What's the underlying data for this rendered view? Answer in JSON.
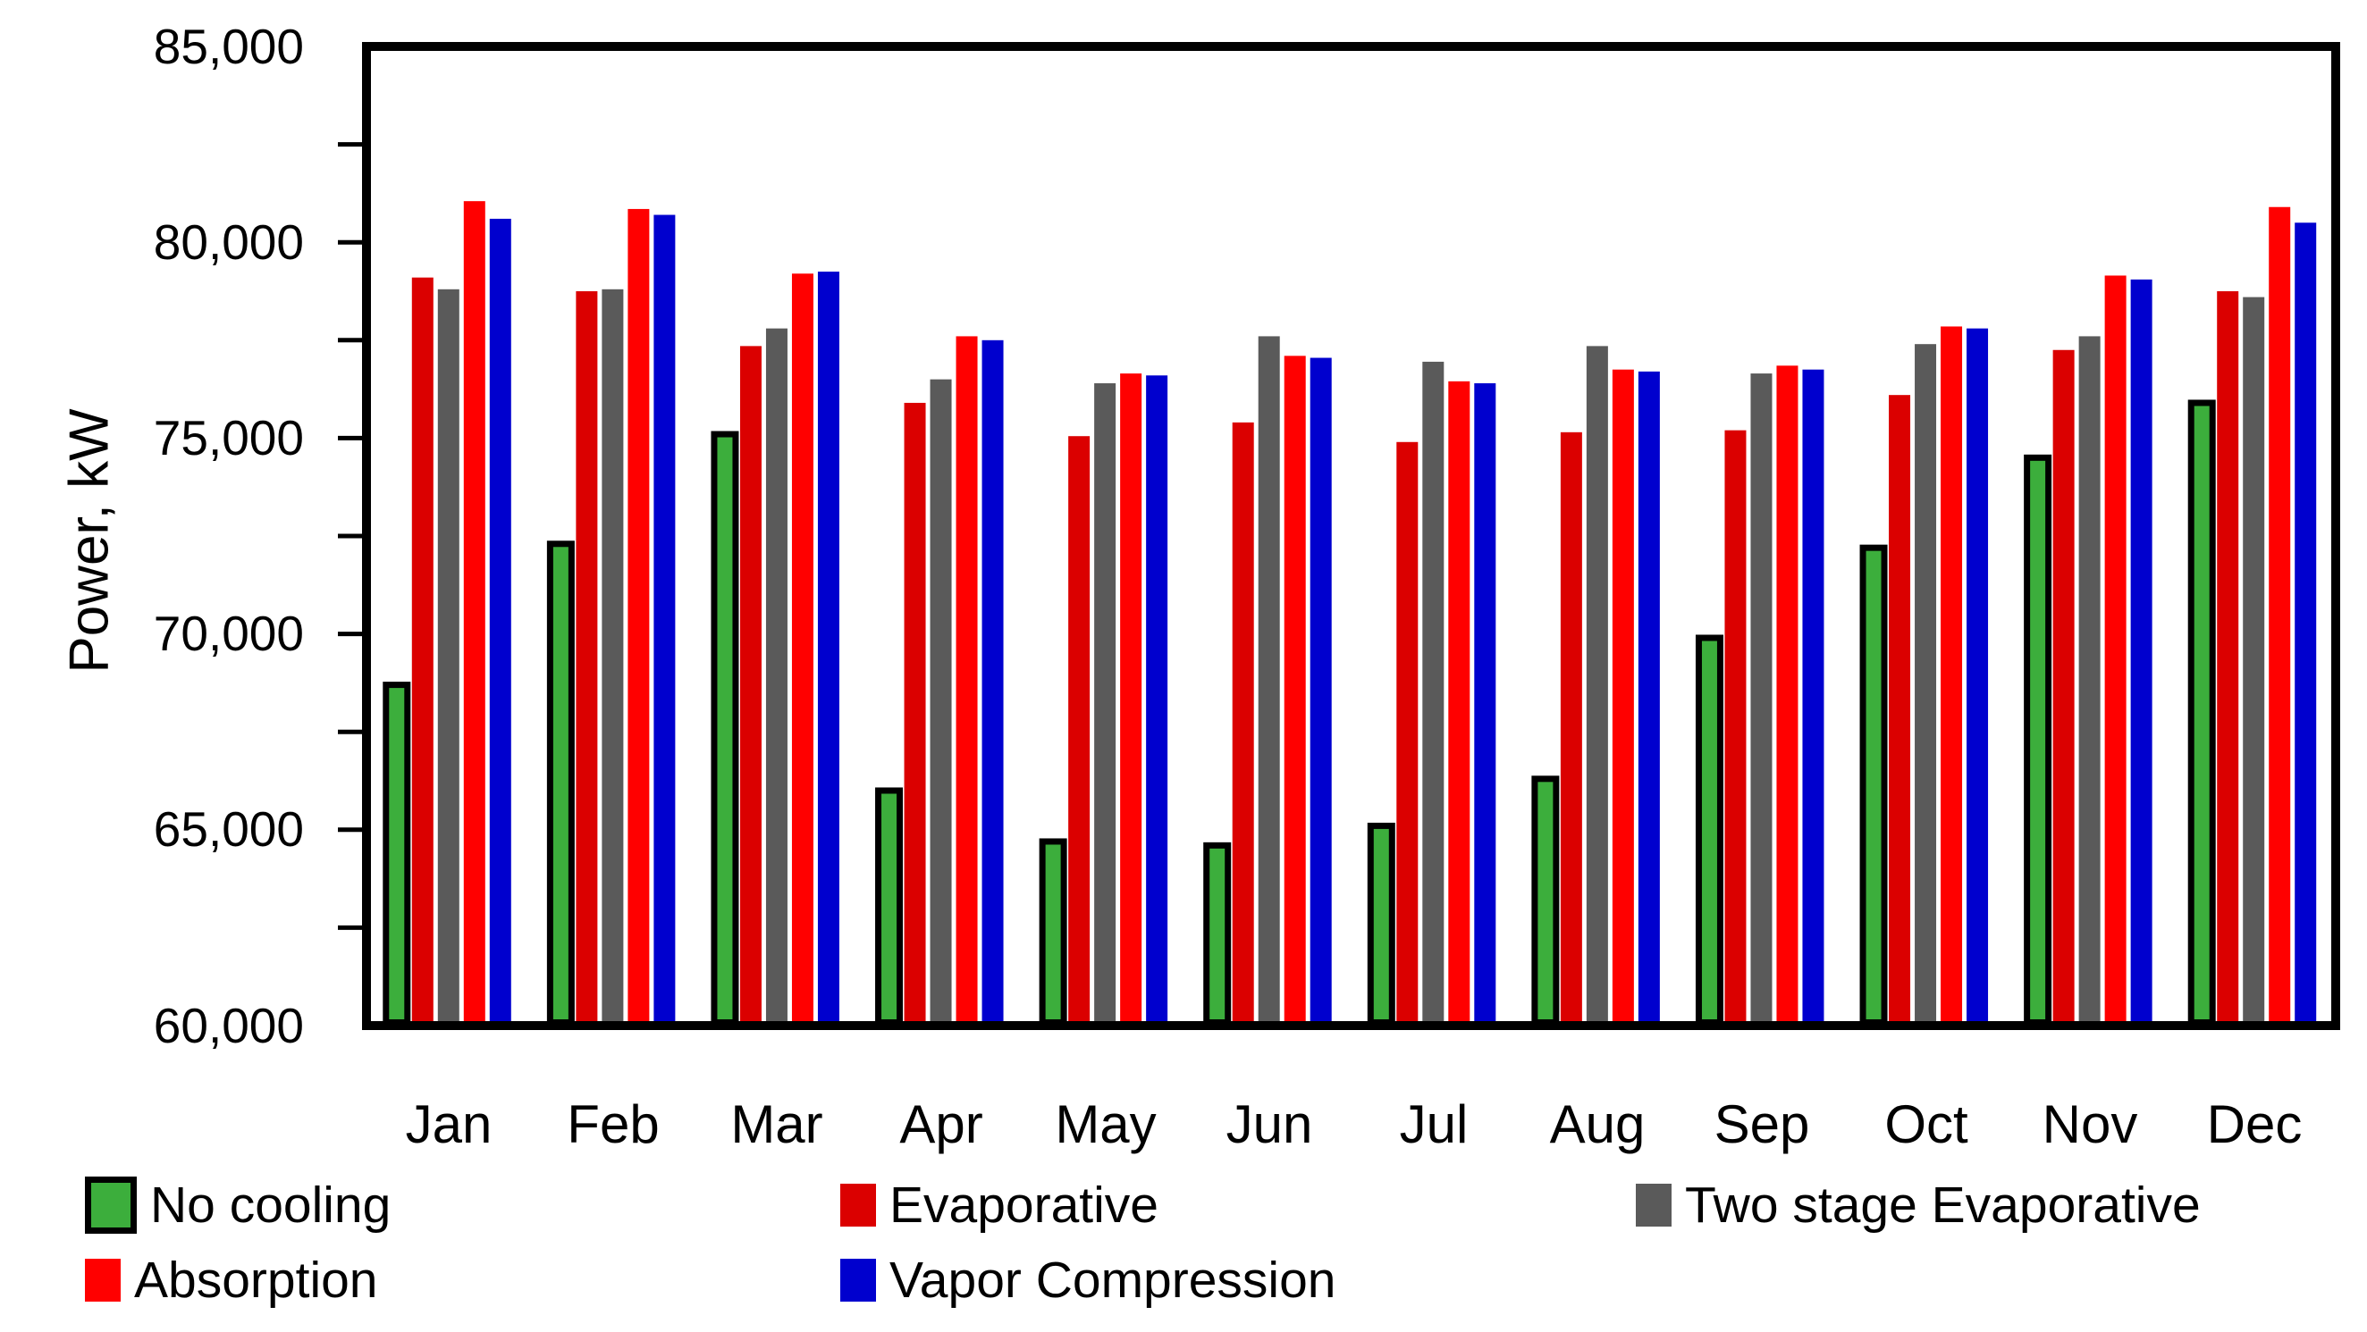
{
  "axis": {
    "y_title": "Power, kW",
    "ytick_labels": [
      "60,000",
      "65,000",
      "70,000",
      "75,000",
      "80,000",
      "85,000"
    ]
  },
  "chart_data": {
    "type": "bar",
    "title": "",
    "xlabel": "",
    "ylabel": "Power, kW",
    "ylim": [
      60000,
      85000
    ],
    "ytick_major_step": 5000,
    "ytick_minor_step": 2500,
    "grid": false,
    "legend_position": "bottom",
    "categories": [
      "Jan",
      "Feb",
      "Mar",
      "Apr",
      "May",
      "Jun",
      "Jul",
      "Aug",
      "Sep",
      "Oct",
      "Nov",
      "Dec"
    ],
    "series": [
      {
        "name": "No cooling",
        "color": "#3CAE3C",
        "border_color": "#000000",
        "values": [
          68700,
          72300,
          75100,
          66000,
          64700,
          64600,
          65100,
          66300,
          69900,
          72200,
          74500,
          75900
        ]
      },
      {
        "name": "Evaporative",
        "color": "#DB0000",
        "values": [
          79100,
          78750,
          77350,
          75900,
          75050,
          75400,
          74900,
          75150,
          75200,
          76100,
          77250,
          78750
        ]
      },
      {
        "name": "Two stage Evaporative",
        "color": "#5A5A5A",
        "values": [
          78800,
          78800,
          77800,
          76500,
          76400,
          77600,
          76950,
          77350,
          76650,
          77400,
          77600,
          78600
        ]
      },
      {
        "name": "Absorption",
        "color": "#FF0000",
        "values": [
          81050,
          80850,
          79200,
          77600,
          76650,
          77100,
          76450,
          76750,
          76850,
          77850,
          79150,
          80900
        ]
      },
      {
        "name": "Vapor Compression",
        "color": "#0000CE",
        "values": [
          80600,
          80700,
          79250,
          77500,
          76600,
          77050,
          76400,
          76700,
          76750,
          77800,
          79050,
          80500
        ]
      }
    ]
  }
}
